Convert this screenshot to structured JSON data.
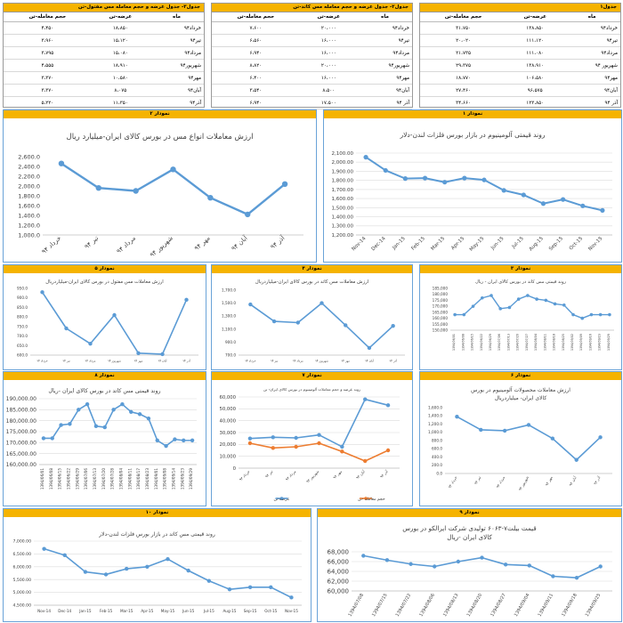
{
  "tables": [
    {
      "title": "جدول۳- جدول عرضه و حجم معامله مس مفتول-تن",
      "columns": [
        "ماه",
        "عرضه-تن",
        "حجم معامله-تن"
      ],
      "rows": [
        [
          "خرداد۹۴",
          "۱۸،۸۵۰",
          "۴،۴۵۰"
        ],
        [
          "تیر۹۴",
          "۱۵،۱۲۰",
          "۳،۹۶۰"
        ],
        [
          "مرداد۹۴",
          "۱۵،۰۸۰",
          "۳،۷۹۵"
        ],
        [
          "شهریور۹۴",
          "۱۸،۹۱۰",
          "۴،۵۵۵"
        ],
        [
          "مهر۹۴",
          "۱۰،۵۸۰",
          "۳،۳۷۰"
        ],
        [
          "آبان۹۴",
          "۸،۰۷۵",
          "۳،۳۷۰"
        ],
        [
          "آذر۹۴",
          "۱۱،۳۵۰",
          "۵،۲۲۰"
        ]
      ]
    },
    {
      "title": "جدول۲- جدول عرضه و حجم معامله مس کاتد-تن",
      "columns": [
        "ماه",
        "عرضه-تن",
        "حجم معامله-تن"
      ],
      "rows": [
        [
          "خرداد۹۴",
          "۲۰،۰۰۰",
          "۷،۶۰۰"
        ],
        [
          "تیر۹۴",
          "۱۶،۰۰۰",
          "۶،۵۶۰"
        ],
        [
          "مرداد۹۴",
          "۱۶،۰۰۰",
          "۶،۹۴۰"
        ],
        [
          "شهریور۹۴",
          "۲۰،۰۰۰",
          "۸،۸۲۰"
        ],
        [
          "مهر۹۴",
          "۱۶،۰۰۰",
          "۶،۴۰۰"
        ],
        [
          "آبان۹۴",
          "۸،۵۰۰",
          "۳،۵۴۰"
        ],
        [
          "آذر ۹۴",
          "۱۷،۵۰۰",
          "۶،۹۴۰"
        ]
      ]
    },
    {
      "title": "جدول۱",
      "columns": [
        "ماه",
        "عرضه-تن",
        "حجم معامله-تن"
      ],
      "rows": [
        [
          "خرداد۹۴",
          "۱۳۸،۸۵۰",
          "۳۱،۷۵۰"
        ],
        [
          "تیر۹۴",
          "۱۱۱،۱۲۰",
          "۲۰،۰۲۰"
        ],
        [
          "مرداد۹۴",
          "۱۱۱،۰۸۰",
          "۲۱،۷۳۵"
        ],
        [
          "شهریور ۹۴",
          "۱۳۸،۹۱۰",
          "۲۹،۳۷۵"
        ],
        [
          "مهر۹۴",
          "۱۰۶،۵۸۰",
          "۱۸،۷۷۰"
        ],
        [
          "آبان۹۴",
          "۹۶،۵۷۵",
          "۲۷،۴۶۰"
        ],
        [
          "آذر ۹۴",
          "۱۲۳،۸۵۰",
          "۳۴،۶۶۰"
        ]
      ]
    }
  ],
  "chart_data": [
    {
      "id": "c2",
      "panel_label": "نمودار ۲",
      "type": "line",
      "title": "ارزش معاملات انواع مس در بورس کالای ایران-میلیارد ریال",
      "categories": [
        "خرداد ۹۴",
        "تیر ۹۴",
        "مرداد ۹۴",
        "شهریور ۹۴",
        "مهر ۹۴",
        "آبان ۹۴",
        "آذر ۹۴"
      ],
      "series": [
        {
          "values": [
            2460,
            1960,
            1900,
            2340,
            1760,
            1420,
            2040
          ],
          "color": "#5b9bd5"
        }
      ],
      "ylim": [
        1000,
        2600
      ],
      "ystep": 200,
      "yformat": "dec1",
      "grid": false
    },
    {
      "id": "c1",
      "panel_label": "نمودار ۱",
      "type": "line",
      "title": "روند قیمتی آلومینیوم در بازار بورس فلزات لندن-دلار",
      "categories": [
        "Nov-14",
        "Dec-14",
        "Jan-15",
        "Feb-15",
        "Mar-15",
        "Apr-15",
        "May-15",
        "Jun-15",
        "Jul-15",
        "Aug-15",
        "Sep-15",
        "Oct-15",
        "Nov-15"
      ],
      "series": [
        {
          "values": [
            2055,
            1910,
            1820,
            1825,
            1780,
            1825,
            1805,
            1690,
            1640,
            1545,
            1590,
            1520,
            1470
          ],
          "color": "#5b9bd5"
        }
      ],
      "ylim": [
        1200,
        2100
      ],
      "ystep": 100,
      "yformat": "dec2",
      "grid": true
    },
    {
      "id": "c5",
      "panel_label": "نمودار ۵",
      "type": "line",
      "title": "ارزش معاملات مس مفتول در بورس کالای ایران-میلیاردریال",
      "categories": [
        "خرداد ۹۴",
        "تیر ۹۴",
        "مرداد ۹۴",
        "شهریور ۹۴",
        "مهر ۹۴",
        "آبان ۹۴",
        "آذر ۹۴"
      ],
      "series": [
        {
          "values": [
            930,
            740,
            660,
            810,
            610,
            605,
            890
          ],
          "color": "#5b9bd5"
        }
      ],
      "ylim": [
        600,
        950
      ],
      "ystep": 50,
      "yformat": "dec1",
      "grid": false
    },
    {
      "id": "c4",
      "panel_label": "نمودار ۴",
      "type": "line",
      "title": "ارزش معاملات مس کاتد در بورس کالای ایران-میلیاردریال",
      "categories": [
        "خرداد ۹۴",
        "تیر ۹۴",
        "مرداد ۹۴",
        "شهریور ۹۴",
        "مهر ۹۴",
        "آبان ۹۴",
        "آذر ۹۴"
      ],
      "series": [
        {
          "values": [
            1480,
            1220,
            1200,
            1500,
            1160,
            810,
            1150
          ],
          "color": "#5b9bd5"
        }
      ],
      "ylim": [
        700,
        1700
      ],
      "ystep": 200,
      "yformat": "dec1",
      "grid": false
    },
    {
      "id": "c3",
      "panel_label": "نمودار ۳",
      "type": "line",
      "title": "روند قیمتی مس کاتد در بورس کالای ایران - ریال",
      "categories": [
        "1394/06/01",
        "1394/06/08",
        "1394/06/15",
        "1394/06/22",
        "1394/06/29",
        "1394/07/06",
        "1394/07/13",
        "1394/07/20",
        "1394/07/27",
        "1394/08/04",
        "1394/08/11",
        "1394/08/18",
        "1394/08/25",
        "1394/09/02",
        "1394/09/09",
        "1394/09/16",
        "1394/09/23",
        "1394/09/29"
      ],
      "series": [
        {
          "values": [
            163000,
            163000,
            170000,
            177000,
            179000,
            168000,
            169000,
            176000,
            179000,
            176000,
            175000,
            172000,
            171000,
            163000,
            160000,
            163000,
            163000,
            163000
          ],
          "color": "#5b9bd5"
        }
      ],
      "ylim": [
        150000,
        185000
      ],
      "ystep": 5000,
      "yformat": "int",
      "grid": false
    },
    {
      "id": "c8",
      "panel_label": "نمودار ۸",
      "type": "line",
      "title": "روند قیمتی مس کاتد در بورس کالای ایران -ریال",
      "categories": [
        "1394/06/01",
        "1394/06/08",
        "1394/06/15",
        "1394/06/22",
        "1394/06/29",
        "1394/07/06",
        "1394/07/13",
        "1394/07/20",
        "1394/07/28",
        "1394/08/04",
        "1394/08/11",
        "1394/08/17",
        "1394/08/23",
        "1394/09/01",
        "1394/09/08",
        "1394/09/14",
        "1394/09/23",
        "1394/09/29"
      ],
      "series": [
        {
          "values": [
            172000,
            172000,
            178000,
            178500,
            185000,
            187500,
            177500,
            177000,
            185000,
            187500,
            184000,
            183000,
            181000,
            171000,
            168500,
            171500,
            171000,
            171000
          ],
          "color": "#5b9bd5"
        }
      ],
      "ylim": [
        160000,
        190000
      ],
      "ystep": 5000,
      "yformat": "dec2",
      "grid": true
    },
    {
      "id": "c7",
      "panel_label": "نمودار ۷",
      "type": "line",
      "title": "روند عرضه و حجم معاملات آلومینیوم در بورس کالای ایران- تن",
      "categories": [
        "خرداد ۹۴",
        "تیر ۹۴",
        "مرداد ۹۴",
        "شهریور ۹۴",
        "مهر ۹۴",
        "آبان ۹۴",
        "آذر ۹۴"
      ],
      "series": [
        {
          "name": "عرضه-تن",
          "values": [
            25000,
            26000,
            25500,
            28000,
            18000,
            58000,
            53000
          ],
          "color": "#5b9bd5"
        },
        {
          "name": "حجم معامله -تن",
          "values": [
            21000,
            17000,
            18000,
            21000,
            14000,
            6000,
            15000
          ],
          "color": "#ed7d31"
        }
      ],
      "ylim": [
        0,
        60000
      ],
      "ystep": 10000,
      "yformat": "int",
      "grid": true,
      "legend": "bottom"
    },
    {
      "id": "c6",
      "panel_label": "نمودار ۶",
      "type": "line",
      "title": "ارزش معاملات محصولات آلومینیوم در بورس کالای ایران- میلیاردریال",
      "categories": [
        "خرداد ۹۴",
        "تیر ۹۴",
        "مرداد ۹۴",
        "شهریور ۹۴",
        "مهر ۹۴",
        "آبان ۹۴",
        "آذر ۹۴"
      ],
      "series": [
        {
          "values": [
            1380,
            1060,
            1040,
            1180,
            850,
            330,
            880
          ],
          "color": "#5b9bd5"
        }
      ],
      "ylim": [
        0,
        1600
      ],
      "ystep": 200,
      "yformat": "dec1",
      "grid": false
    },
    {
      "id": "c10",
      "panel_label": "نمودار ۱۰",
      "type": "line",
      "title": "روند قیمتی مس کاتد در بازار بورس فلزات لندن-دلار",
      "categories": [
        "Nov-14",
        "Dec-14",
        "Jan-15",
        "Feb-15",
        "Mar-15",
        "Apr-15",
        "May-15",
        "Jun-15",
        "Jul-15",
        "Aug-15",
        "Sep-15",
        "Oct-15",
        "Nov-15"
      ],
      "series": [
        {
          "values": [
            6700,
            6450,
            5800,
            5700,
            5920,
            6000,
            6300,
            5850,
            5450,
            5120,
            5200,
            5200,
            4800
          ],
          "color": "#5b9bd5"
        }
      ],
      "ylim": [
        4500,
        7000
      ],
      "ystep": 500,
      "yformat": "dec2",
      "grid": true
    },
    {
      "id": "c9",
      "panel_label": "نمودار ۹",
      "type": "line",
      "title": "قیمت بیلت۷-۶۰۶۳ تولیدی شرکت ایرالکو در بورس کالای ایران -ریال",
      "categories": [
        "1394/07/08",
        "1394/07/15",
        "1394/07/22",
        "1394/08/06",
        "1394/08/13",
        "1394/08/20",
        "1394/08/27",
        "1394/09/04",
        "1394/09/11",
        "1394/09/18",
        "1394/09/25"
      ],
      "series": [
        {
          "values": [
            67200,
            66300,
            65500,
            65000,
            66000,
            66800,
            65400,
            65200,
            63000,
            62700,
            65000
          ],
          "color": "#5b9bd5"
        }
      ],
      "ylim": [
        60000,
        68000
      ],
      "ystep": 2000,
      "yformat": "int",
      "grid": true
    }
  ]
}
